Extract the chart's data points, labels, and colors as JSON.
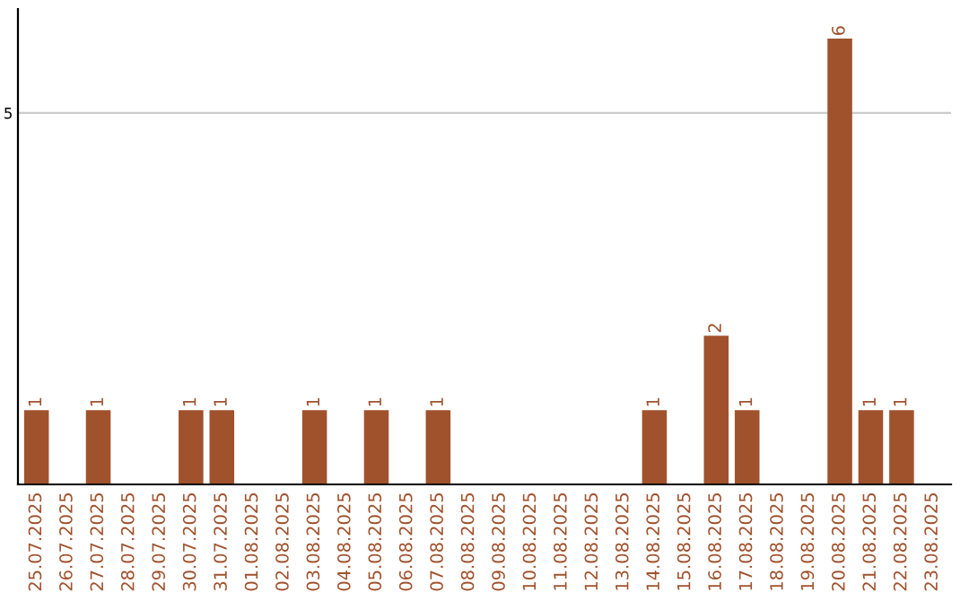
{
  "chart_data": {
    "type": "bar",
    "categories": [
      "25.07.2025",
      "26.07.2025",
      "27.07.2025",
      "28.07.2025",
      "29.07.2025",
      "30.07.2025",
      "31.07.2025",
      "01.08.2025",
      "02.08.2025",
      "03.08.2025",
      "04.08.2025",
      "05.08.2025",
      "06.08.2025",
      "07.08.2025",
      "08.08.2025",
      "09.08.2025",
      "10.08.2025",
      "11.08.2025",
      "12.08.2025",
      "13.08.2025",
      "14.08.2025",
      "15.08.2025",
      "16.08.2025",
      "17.08.2025",
      "18.08.2025",
      "19.08.2025",
      "20.08.2025",
      "21.08.2025",
      "22.08.2025",
      "23.08.2025"
    ],
    "values": [
      1,
      0,
      1,
      0,
      0,
      1,
      1,
      0,
      0,
      1,
      0,
      1,
      0,
      1,
      0,
      0,
      0,
      0,
      0,
      0,
      1,
      0,
      2,
      1,
      0,
      0,
      6,
      1,
      1,
      0
    ],
    "value_labels": [
      "1",
      null,
      "1",
      null,
      null,
      "1",
      "1",
      null,
      null,
      "1",
      null,
      "1",
      null,
      "1",
      null,
      null,
      null,
      null,
      null,
      null,
      "1",
      null,
      "2",
      "1",
      null,
      null,
      "6",
      "1",
      "1",
      null
    ],
    "color": "#a0522d",
    "ylim": [
      0,
      6.4
    ],
    "yticks": [
      5
    ],
    "grid": "y",
    "legend": false
  }
}
